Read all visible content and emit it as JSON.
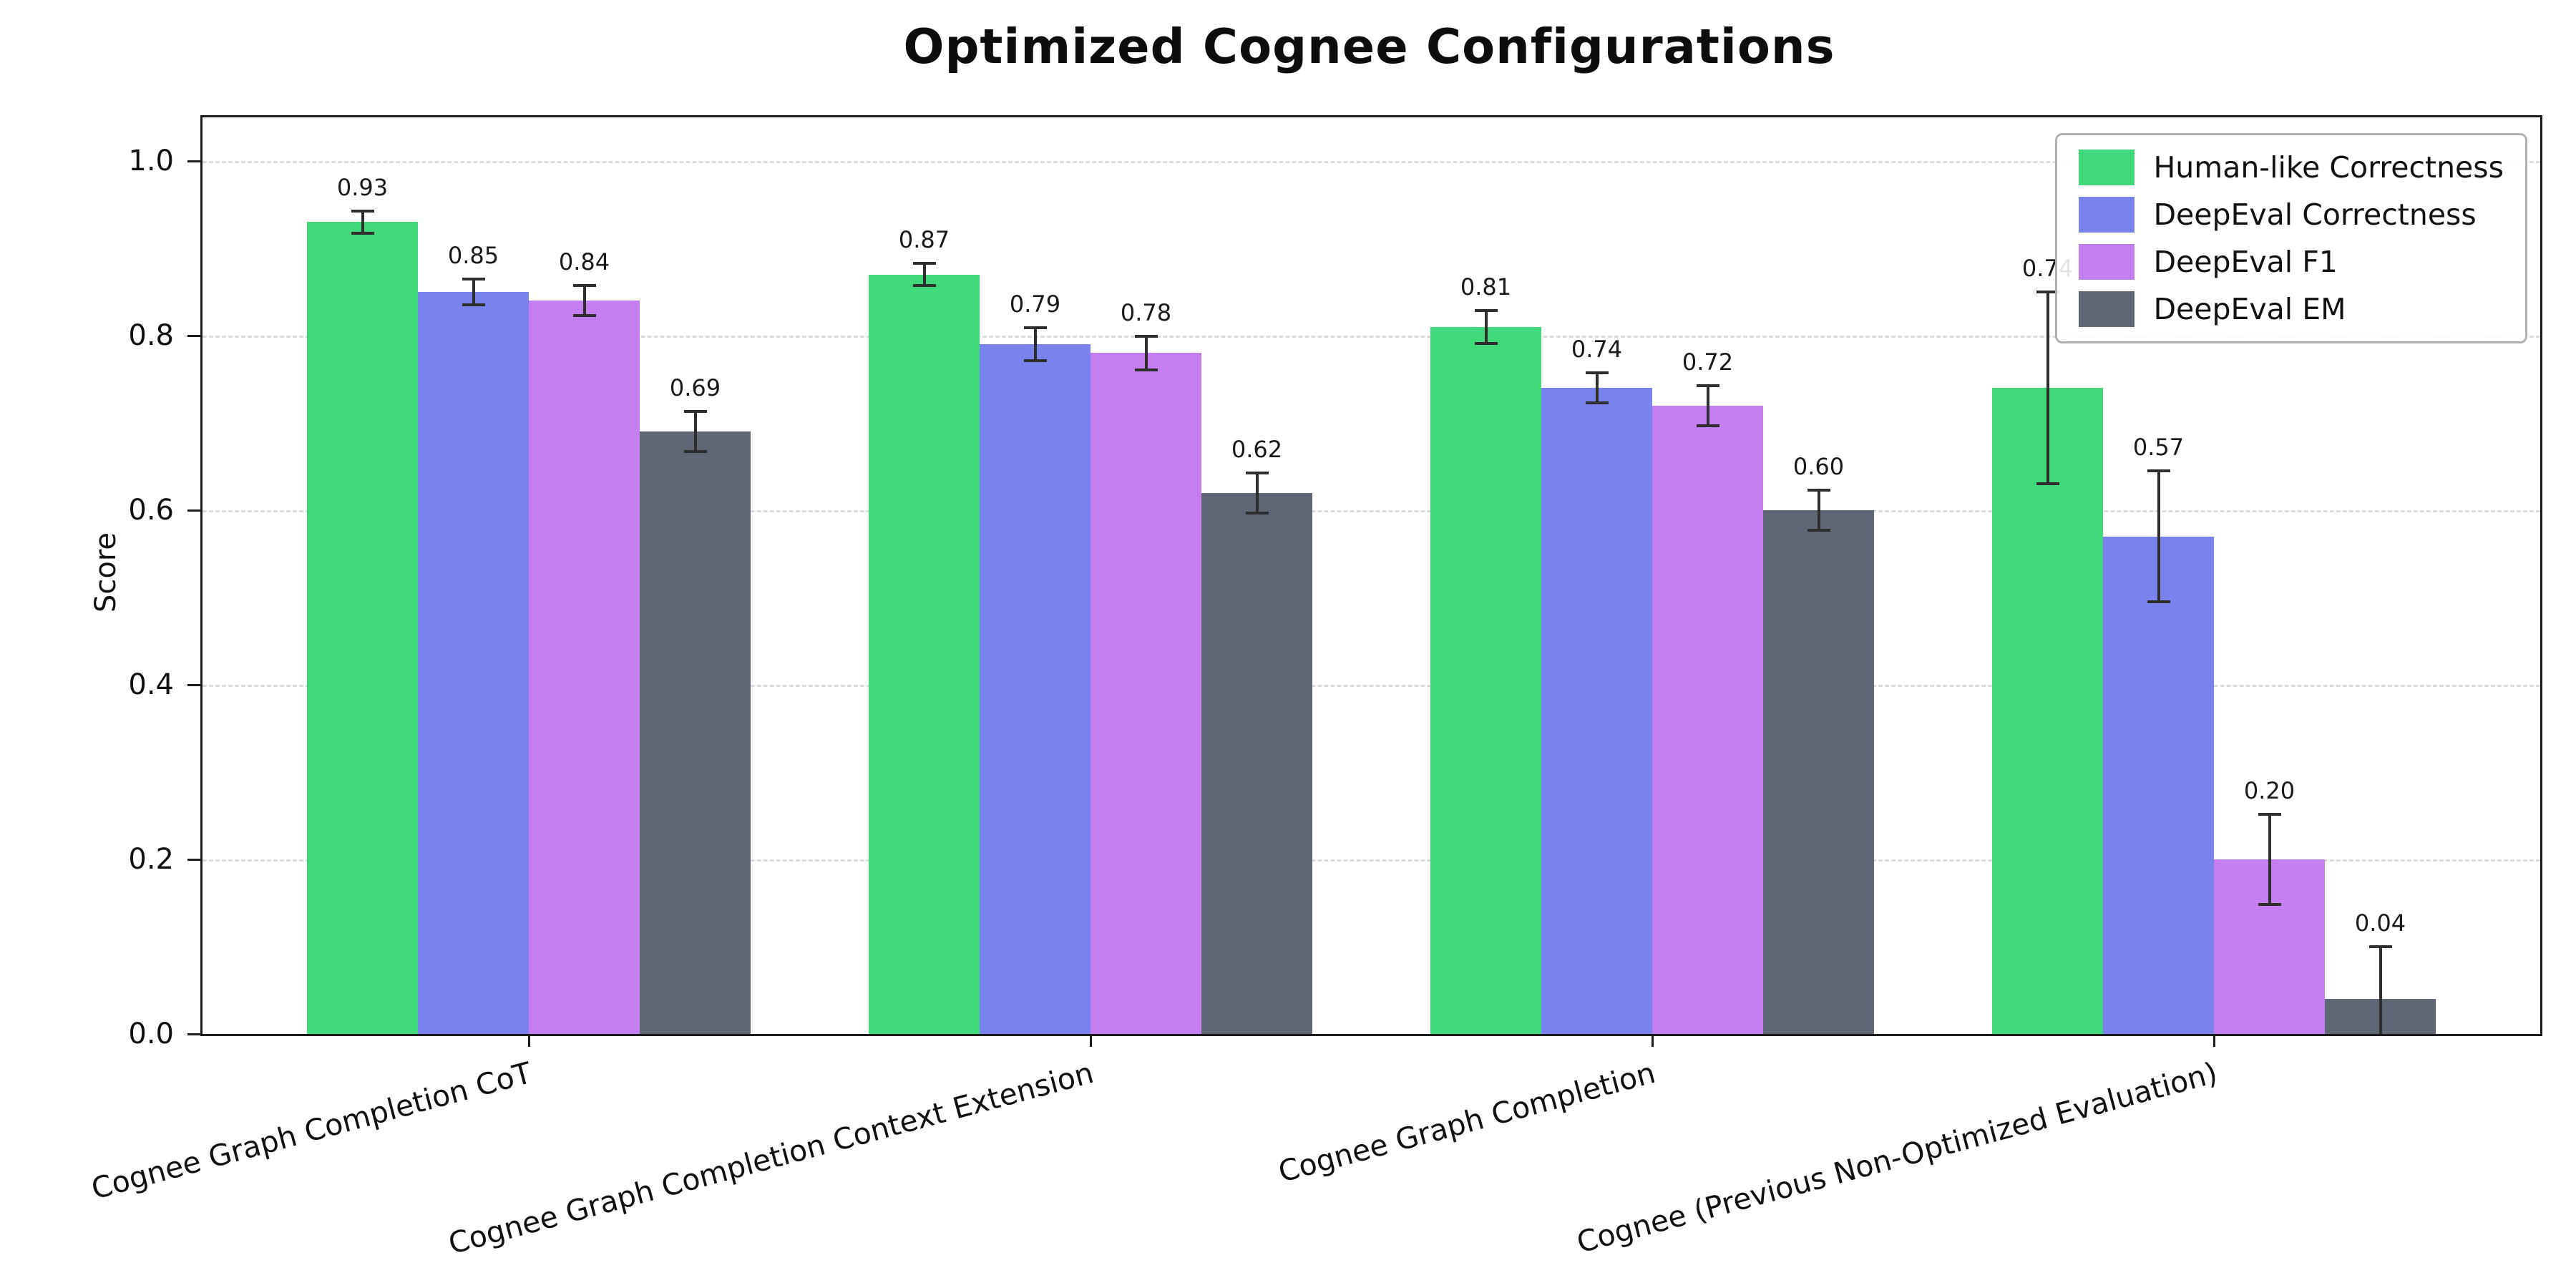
{
  "chart_data": {
    "type": "bar",
    "title": "Optimized Cognee Configurations",
    "xlabel": "",
    "ylabel": "Score",
    "ylim": [
      0,
      1.05
    ],
    "yticks": [
      0.0,
      0.2,
      0.4,
      0.6,
      0.8,
      1.0
    ],
    "grid": true,
    "grid_style": "dashed",
    "legend_position": "upper right",
    "categories": [
      "Cognee Graph Completion CoT",
      "Cognee Graph Completion Context Extension",
      "Cognee Graph Completion",
      "Cognee (Previous Non-Optimized Evaluation)"
    ],
    "series": [
      {
        "name": "Human-like Correctness",
        "color": "#42d97d",
        "values": [
          0.93,
          0.87,
          0.81,
          0.74
        ],
        "errors": [
          0.013,
          0.013,
          0.019,
          0.11
        ]
      },
      {
        "name": "DeepEval Correctness",
        "color": "#7a82ed",
        "values": [
          0.85,
          0.79,
          0.74,
          0.57
        ],
        "errors": [
          0.015,
          0.019,
          0.017,
          0.075
        ]
      },
      {
        "name": "DeepEval F1",
        "color": "#c37ef0",
        "values": [
          0.84,
          0.78,
          0.72,
          0.2
        ],
        "errors": [
          0.017,
          0.019,
          0.023,
          0.052
        ]
      },
      {
        "name": "DeepEval EM",
        "color": "#606774",
        "values": [
          0.69,
          0.62,
          0.6,
          0.04
        ],
        "errors": [
          0.023,
          0.023,
          0.023,
          0.06
        ]
      }
    ],
    "error_bar_color": "#2e2e2e",
    "value_label_decimals": 2
  }
}
